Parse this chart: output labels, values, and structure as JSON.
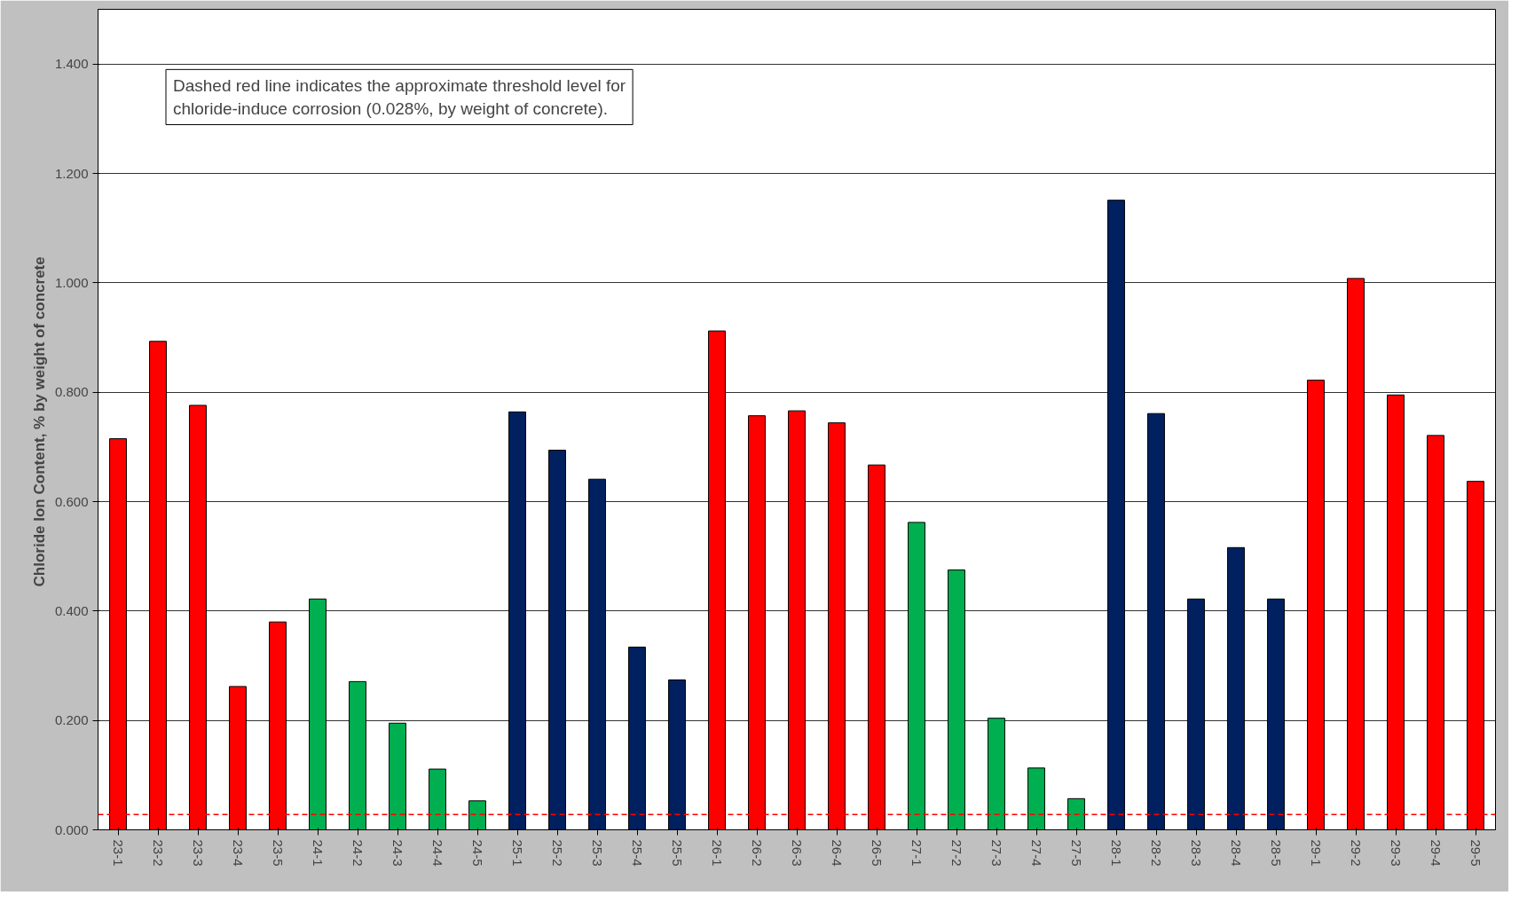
{
  "chart_data": {
    "type": "bar",
    "ylabel": "Chloride Ion Content,  % by weight of concrete",
    "categories": [
      "23-1",
      "23-2",
      "23-3",
      "23-4",
      "23-5",
      "24-1",
      "24-2",
      "24-3",
      "24-4",
      "24-5",
      "25-1",
      "25-2",
      "25-3",
      "25-4",
      "25-5",
      "26-1",
      "26-2",
      "26-3",
      "26-4",
      "26-5",
      "27-1",
      "27-2",
      "27-3",
      "27-4",
      "27-5",
      "28-1",
      "28-2",
      "28-3",
      "28-4",
      "28-5",
      "29-1",
      "29-2",
      "29-3",
      "29-4",
      "29-5"
    ],
    "values": [
      0.715,
      0.893,
      0.776,
      0.262,
      0.38,
      0.422,
      0.271,
      0.195,
      0.111,
      0.053,
      0.764,
      0.694,
      0.641,
      0.334,
      0.274,
      0.912,
      0.757,
      0.766,
      0.744,
      0.667,
      0.562,
      0.475,
      0.204,
      0.113,
      0.057,
      1.151,
      0.761,
      0.422,
      0.516,
      0.422,
      0.822,
      1.008,
      0.795,
      0.721,
      0.637
    ],
    "colors": [
      "#ff0000",
      "#ff0000",
      "#ff0000",
      "#ff0000",
      "#ff0000",
      "#00b050",
      "#00b050",
      "#00b050",
      "#00b050",
      "#00b050",
      "#002060",
      "#002060",
      "#002060",
      "#002060",
      "#002060",
      "#ff0000",
      "#ff0000",
      "#ff0000",
      "#ff0000",
      "#ff0000",
      "#00b050",
      "#00b050",
      "#00b050",
      "#00b050",
      "#00b050",
      "#002060",
      "#002060",
      "#002060",
      "#002060",
      "#002060",
      "#ff0000",
      "#ff0000",
      "#ff0000",
      "#ff0000",
      "#ff0000"
    ],
    "ylim": [
      0,
      1.5
    ],
    "yticks": [
      {
        "value": 0,
        "label": "0.000"
      },
      {
        "value": 0.2,
        "label": "0.200"
      },
      {
        "value": 0.4,
        "label": "0.400"
      },
      {
        "value": 0.6,
        "label": "0.600"
      },
      {
        "value": 0.8,
        "label": "0.800"
      },
      {
        "value": 1.0,
        "label": "1.000"
      },
      {
        "value": 1.2,
        "label": "1.200"
      },
      {
        "value": 1.4,
        "label": "1.400"
      }
    ],
    "grid": "y",
    "ref_lines": [
      {
        "axis": "y",
        "value": 0.028,
        "label": null,
        "color": "#ff0000",
        "line_style": "dashed"
      }
    ],
    "annotations": [
      "Dashed red line indicates the approximate threshold level for\nchloride-induce corrosion (0.028%, by weight of concrete)."
    ]
  }
}
